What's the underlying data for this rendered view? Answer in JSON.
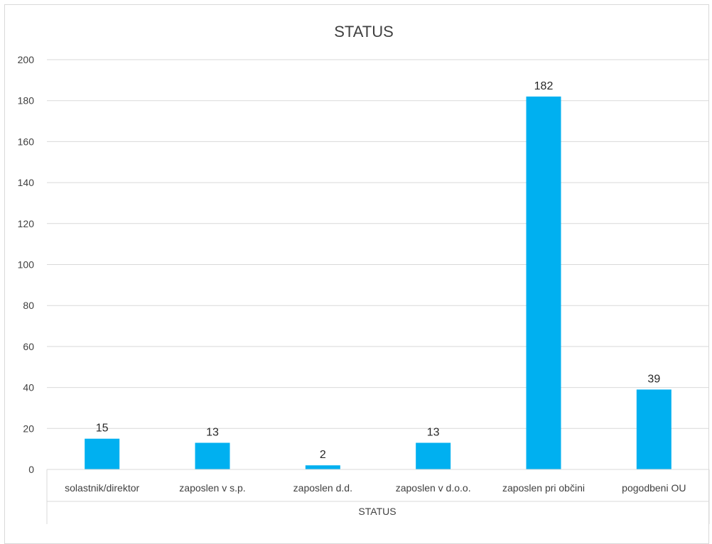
{
  "chart_data": {
    "type": "bar",
    "title": "STATUS",
    "xlabel": "STATUS",
    "ylabel": "",
    "categories": [
      "solastnik/direktor",
      "zaposlen v s.p.",
      "zaposlen d.d.",
      "zaposlen v d.o.o.",
      "zaposlen pri občini",
      "pogodbeni OU"
    ],
    "values": [
      15,
      13,
      2,
      13,
      182,
      39
    ],
    "data_labels": [
      "15",
      "13",
      "2",
      "13",
      "182",
      "39"
    ],
    "ylim": [
      0,
      200
    ],
    "yticks": [
      "0",
      "20",
      "40",
      "60",
      "80",
      "100",
      "120",
      "140",
      "160",
      "180",
      "200"
    ],
    "grid": true,
    "legend": "none",
    "colors": {
      "bar": "#00B0F0",
      "grid": "#d9d9d9",
      "text": "#404040",
      "data_label": "#262626"
    }
  }
}
